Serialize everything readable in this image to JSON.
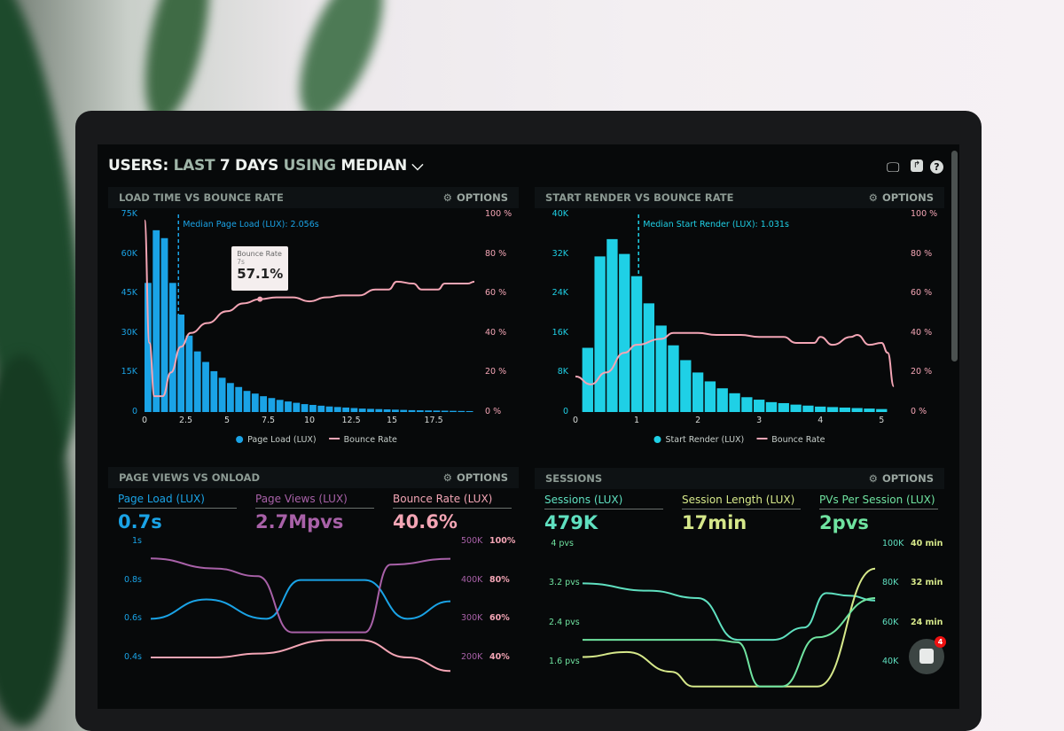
{
  "header": {
    "title_users": "USERS:",
    "title_last": "LAST",
    "title_days": "7 DAYS",
    "title_using": "USING",
    "title_median": "MEDIAN",
    "dropdown_icon": "chevron-down-icon"
  },
  "toolbar_icons": [
    "monitor-icon",
    "share-icon",
    "help-icon"
  ],
  "options_label": "OPTIONS",
  "colors": {
    "blue": "#1aa3e6",
    "cyan": "#1fd0e6",
    "pink": "#f3a5b5",
    "purple": "#a861a8",
    "teal": "#5fe0c0",
    "lime": "#d6e88a",
    "green": "#6fe3a0"
  },
  "chat": {
    "badge": "4"
  },
  "chart_data": [
    {
      "type": "bar",
      "title": "LOAD TIME VS BOUNCE RATE",
      "x": [
        0,
        0.5,
        1,
        1.5,
        2,
        2.5,
        3,
        3.5,
        4,
        4.5,
        5,
        5.5,
        6,
        6.5,
        7,
        7.5,
        8,
        8.5,
        9,
        9.5,
        10,
        10.5,
        11,
        11.5,
        12,
        12.5,
        13,
        13.5,
        14,
        14.5,
        15,
        15.5,
        16,
        16.5,
        17,
        17.5,
        18,
        18.5,
        19,
        19.5
      ],
      "xlim": [
        0,
        20
      ],
      "xticks": [
        "0",
        "2.5",
        "5",
        "7.5",
        "10",
        "12.5",
        "15",
        "17.5"
      ],
      "xtick_values": [
        0,
        2.5,
        5,
        7.5,
        10,
        12.5,
        15,
        17.5
      ],
      "ylim": [
        0,
        75000
      ],
      "yticks": [
        "0",
        "15K",
        "30K",
        "45K",
        "60K",
        "75K"
      ],
      "y2lim": [
        0,
        100
      ],
      "y2ticks": [
        "0 %",
        "20 %",
        "40 %",
        "60 %",
        "80 %",
        "100 %"
      ],
      "series": [
        {
          "name": "Page Load (LUX)",
          "type": "bar",
          "values": [
            49000,
            69000,
            66000,
            49000,
            37000,
            29000,
            23000,
            19000,
            15500,
            13000,
            11000,
            9500,
            8000,
            7000,
            6000,
            5300,
            4600,
            4000,
            3500,
            3000,
            2700,
            2400,
            2100,
            1900,
            1700,
            1500,
            1300,
            1200,
            1100,
            1000,
            900,
            800,
            700,
            650,
            600,
            550,
            500,
            450,
            400,
            350
          ]
        },
        {
          "name": "Bounce Rate",
          "type": "line",
          "axis": "right",
          "points": [
            [
              0,
              97
            ],
            [
              0.3,
              35
            ],
            [
              0.6,
              8
            ],
            [
              1.1,
              8
            ],
            [
              1.6,
              20
            ],
            [
              2.2,
              33
            ],
            [
              2.8,
              40
            ],
            [
              3.8,
              45
            ],
            [
              5,
              51
            ],
            [
              6,
              55
            ],
            [
              7,
              57.1
            ],
            [
              8,
              58
            ],
            [
              9,
              58
            ],
            [
              10,
              56
            ],
            [
              11,
              58
            ],
            [
              12,
              59
            ],
            [
              13,
              59
            ],
            [
              14,
              62
            ],
            [
              14.8,
              62
            ],
            [
              15.3,
              66
            ],
            [
              16.3,
              65
            ],
            [
              16.8,
              62
            ],
            [
              17.8,
              62
            ],
            [
              18.2,
              65
            ],
            [
              19,
              65
            ],
            [
              19.6,
              65
            ],
            [
              20,
              66
            ]
          ]
        }
      ],
      "annotation": "Median Page Load (LUX): 2.056s",
      "annotation_x": 2.056,
      "tooltip": {
        "title": "Bounce Rate",
        "sub": "7s",
        "value": "57.1%",
        "x": 7,
        "y": 57.1
      }
    },
    {
      "type": "bar",
      "title": "START RENDER VS BOUNCE RATE",
      "x": [
        0.2,
        0.4,
        0.6,
        0.8,
        1,
        1.2,
        1.4,
        1.6,
        1.8,
        2,
        2.2,
        2.4,
        2.6,
        2.8,
        3,
        3.2,
        3.4,
        3.6,
        3.8,
        4,
        4.2,
        4.4,
        4.6,
        4.8,
        5
      ],
      "xlim": [
        0,
        5.3
      ],
      "xticks": [
        "0",
        "1",
        "2",
        "3",
        "4",
        "5"
      ],
      "xtick_values": [
        0,
        1,
        2,
        3,
        4,
        5
      ],
      "ylim": [
        0,
        40000
      ],
      "yticks": [
        "0",
        "8K",
        "16K",
        "24K",
        "32K",
        "40K"
      ],
      "y2lim": [
        0,
        100
      ],
      "y2ticks": [
        "0 %",
        "20 %",
        "40 %",
        "60 %",
        "80 %",
        "100 %"
      ],
      "series": [
        {
          "name": "Start Render (LUX)",
          "type": "bar",
          "values": [
            13000,
            31500,
            35000,
            32000,
            27500,
            22000,
            17500,
            13500,
            10500,
            8000,
            6200,
            4800,
            3800,
            3000,
            2500,
            2000,
            1800,
            1500,
            1300,
            1100,
            1000,
            900,
            800,
            700,
            600
          ]
        },
        {
          "name": "Bounce Rate",
          "type": "line",
          "axis": "right",
          "points": [
            [
              0,
              18
            ],
            [
              0.25,
              14
            ],
            [
              0.5,
              20
            ],
            [
              0.8,
              30
            ],
            [
              1,
              34
            ],
            [
              1.4,
              37
            ],
            [
              1.6,
              40
            ],
            [
              2,
              40
            ],
            [
              2.3,
              39
            ],
            [
              2.7,
              39
            ],
            [
              3,
              38
            ],
            [
              3.4,
              38
            ],
            [
              3.6,
              35
            ],
            [
              3.9,
              35
            ],
            [
              4,
              38
            ],
            [
              4.2,
              34
            ],
            [
              4.5,
              38
            ],
            [
              4.6,
              39
            ],
            [
              4.8,
              34
            ],
            [
              5,
              35
            ],
            [
              5.1,
              30
            ],
            [
              5.2,
              13
            ]
          ]
        }
      ],
      "annotation": "Median Start Render (LUX): 1.031s",
      "annotation_x": 1.031
    },
    {
      "type": "line",
      "title": "PAGE VIEWS VS ONLOAD",
      "stats": [
        {
          "label": "Page Load (LUX)",
          "value": "0.7s"
        },
        {
          "label": "Page Views (LUX)",
          "value": "2.7Mpvs"
        },
        {
          "label": "Bounce Rate (LUX)",
          "value": "40.6%"
        }
      ],
      "ylim": [
        0.4,
        1
      ],
      "yticks": [
        "0.4s",
        "0.6s",
        "0.8s",
        "1s"
      ],
      "y2ticks": [
        "200K",
        "300K",
        "400K",
        "500K"
      ],
      "y3ticks": [
        "40%",
        "60%",
        "80%",
        "100%"
      ],
      "series": [
        {
          "name": "Page Load (LUX)",
          "points": [
            [
              0,
              0.6
            ],
            [
              1.3,
              0.7
            ],
            [
              2.7,
              0.6
            ],
            [
              3.5,
              0.8
            ],
            [
              5,
              0.8
            ],
            [
              6,
              0.6
            ],
            [
              7,
              0.69
            ]
          ]
        },
        {
          "name": "Page Views (LUX)",
          "axis": "views",
          "points": [
            [
              0,
              456000
            ],
            [
              1.5,
              430000
            ],
            [
              2.5,
              410000
            ],
            [
              3.3,
              265000
            ],
            [
              5,
              265000
            ],
            [
              5.6,
              440000
            ],
            [
              7,
              455000
            ]
          ]
        },
        {
          "name": "Bounce Rate (LUX)",
          "axis": "percent",
          "points": [
            [
              0,
              40
            ],
            [
              1.5,
              40
            ],
            [
              2.5,
              42
            ],
            [
              4.2,
              49
            ],
            [
              4.9,
              49
            ],
            [
              6,
              40
            ],
            [
              7,
              33
            ]
          ]
        }
      ]
    },
    {
      "type": "line",
      "title": "SESSIONS",
      "stats": [
        {
          "label": "Sessions (LUX)",
          "value": "479K"
        },
        {
          "label": "Session Length (LUX)",
          "value": "17min"
        },
        {
          "label": "PVs Per Session (LUX)",
          "value": "2pvs"
        }
      ],
      "ylim": [
        1.6,
        4
      ],
      "yticks": [
        "1.6 pvs",
        "2.4 pvs",
        "3.2 pvs",
        "4 pvs"
      ],
      "y2ticks": [
        "40K",
        "60K",
        "80K",
        "100K"
      ],
      "y3ticks": [
        "24 min",
        "32 min",
        "40 min"
      ],
      "series": [
        {
          "name": "Sessions (LUX)",
          "points": [
            [
              0,
              3.2
            ],
            [
              1.5,
              3.05
            ],
            [
              2.6,
              2.9
            ],
            [
              3.5,
              2.05
            ],
            [
              4.3,
              2.05
            ],
            [
              5,
              2.3
            ],
            [
              5.5,
              3.0
            ],
            [
              6,
              2.95
            ],
            [
              6.6,
              2.85
            ]
          ]
        },
        {
          "name": "Session Length (LUX)",
          "points": [
            [
              0,
              1.7
            ],
            [
              1,
              1.8
            ],
            [
              2,
              1.4
            ],
            [
              2.5,
              1.1
            ],
            [
              5.3,
              1.1
            ],
            [
              6.6,
              3.5
            ]
          ]
        },
        {
          "name": "PVs Per Session (LUX)",
          "points": [
            [
              0,
              2.05
            ],
            [
              3,
              2.05
            ],
            [
              3.5,
              2.0
            ],
            [
              4,
              1.1
            ],
            [
              4.5,
              1.1
            ],
            [
              5.3,
              2.1
            ],
            [
              6.6,
              2.9
            ]
          ]
        }
      ]
    }
  ]
}
